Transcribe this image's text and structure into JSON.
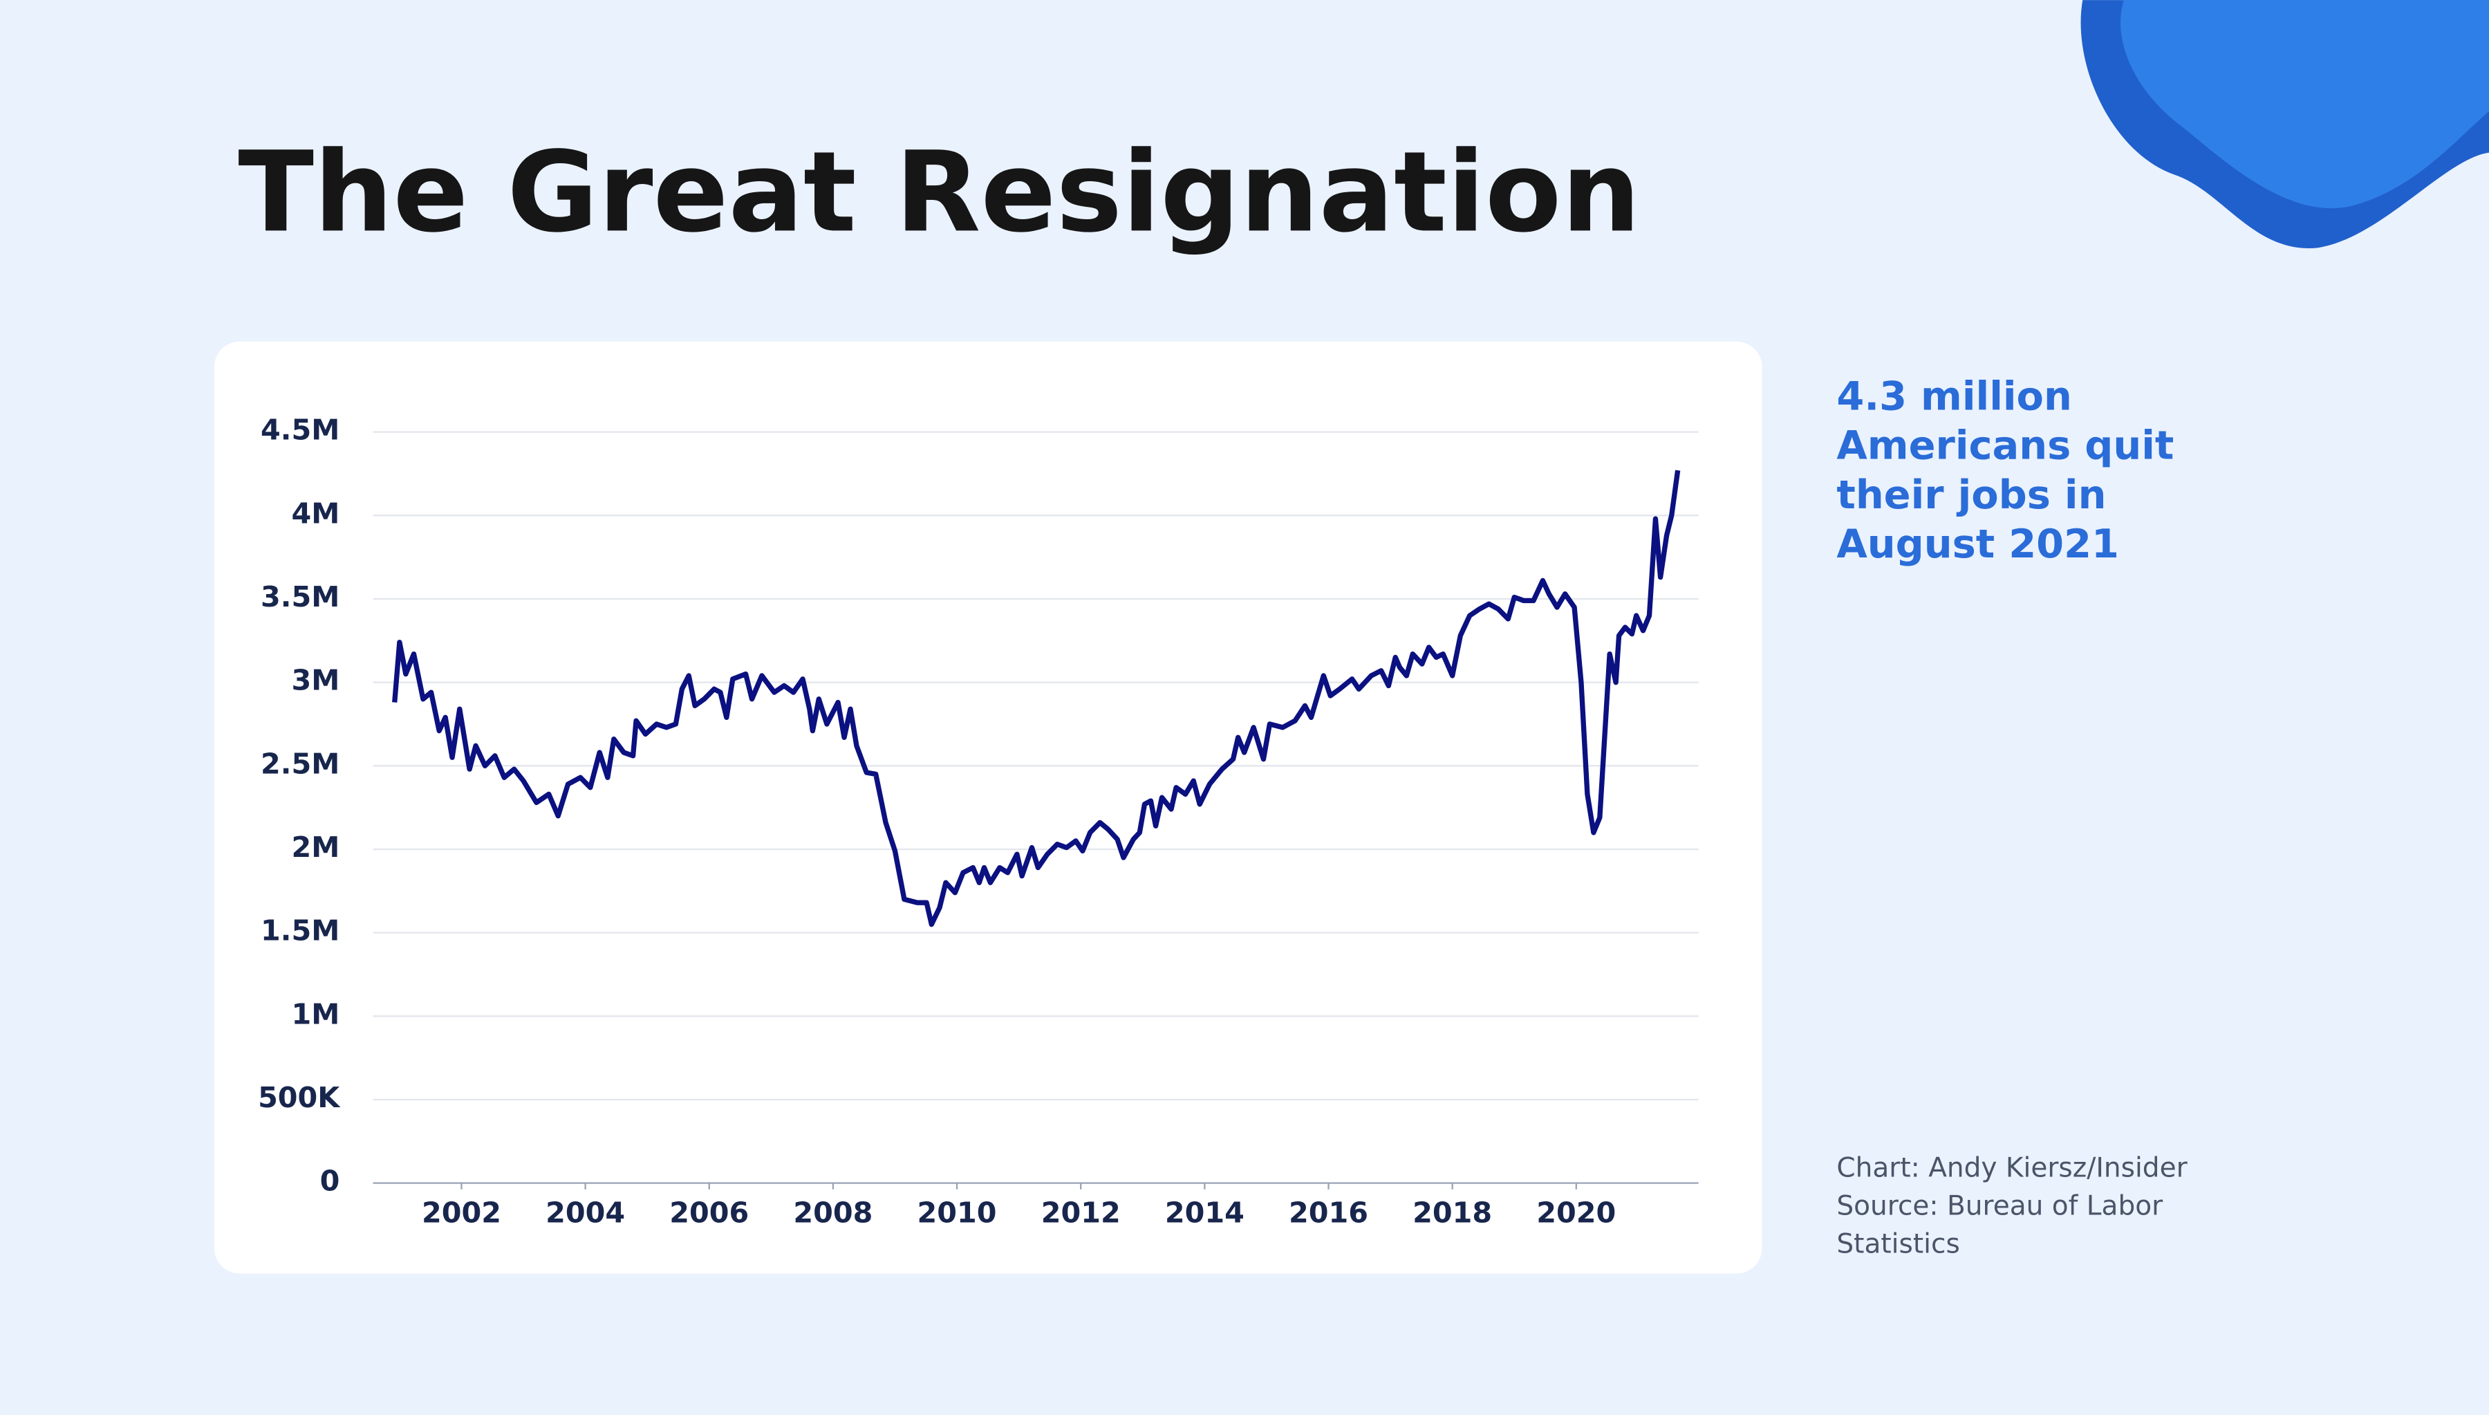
{
  "chart_data": {
    "type": "line",
    "title": "The Great Resignation",
    "annotation": "4.3 million Americans quit their jobs in August 2021",
    "credit": "Chart: Andy Kiersz/Insider",
    "source": "Source: Bureau of Labor Statistics",
    "color": "#0b1180",
    "grid": true,
    "xlim": [
      2000.7,
      2022
    ],
    "xticks": [
      2002,
      2004,
      2006,
      2008,
      2010,
      2012,
      2014,
      2016,
      2018,
      2020
    ],
    "ylim": [
      0,
      4500000
    ],
    "yticks": [
      0,
      {
        "value": 500000,
        "label": "500K"
      },
      {
        "value": 1000000,
        "label": "1M"
      },
      {
        "value": 1500000,
        "label": "1.5M"
      },
      {
        "value": 2000000,
        "label": "2M"
      },
      {
        "value": 2500000,
        "label": "2.5M"
      },
      {
        "value": 3000000,
        "label": "3M"
      },
      {
        "value": 3500000,
        "label": "3.5M"
      },
      {
        "value": 4000000,
        "label": "4M"
      },
      {
        "value": 4500000,
        "label": "4.5M"
      }
    ],
    "x": [
      2000.92,
      2001.0,
      2001.1,
      2001.23,
      2001.38,
      2001.51,
      2001.64,
      2001.74,
      2001.85,
      2001.97,
      2002.13,
      2002.23,
      2002.38,
      2002.54,
      2002.69,
      2002.85,
      2003.0,
      2003.21,
      2003.41,
      2003.56,
      2003.72,
      2003.92,
      2004.08,
      2004.23,
      2004.36,
      2004.46,
      2004.62,
      2004.77,
      2004.82,
      2004.97,
      2005.15,
      2005.31,
      2005.46,
      2005.56,
      2005.67,
      2005.77,
      2005.92,
      2006.08,
      2006.18,
      2006.28,
      2006.38,
      2006.59,
      2006.69,
      2006.85,
      2007.05,
      2007.21,
      2007.36,
      2007.51,
      2007.62,
      2007.67,
      2007.77,
      2007.9,
      2008.08,
      2008.18,
      2008.28,
      2008.38,
      2008.54,
      2008.69,
      2008.85,
      2009.0,
      2009.15,
      2009.36,
      2009.51,
      2009.59,
      2009.72,
      2009.82,
      2009.97,
      2010.1,
      2010.26,
      2010.36,
      2010.44,
      2010.54,
      2010.69,
      2010.82,
      2010.97,
      2011.05,
      2011.21,
      2011.31,
      2011.46,
      2011.62,
      2011.77,
      2011.92,
      2012.03,
      2012.15,
      2012.31,
      2012.44,
      2012.59,
      2012.69,
      2012.85,
      2012.95,
      2013.03,
      2013.13,
      2013.21,
      2013.31,
      2013.46,
      2013.54,
      2013.69,
      2013.82,
      2013.92,
      2014.08,
      2014.28,
      2014.46,
      2014.54,
      2014.64,
      2014.79,
      2014.95,
      2015.05,
      2015.26,
      2015.46,
      2015.62,
      2015.72,
      2015.92,
      2016.03,
      2016.18,
      2016.38,
      2016.49,
      2016.69,
      2016.85,
      2016.97,
      2017.08,
      2017.15,
      2017.26,
      2017.36,
      2017.51,
      2017.62,
      2017.74,
      2017.85,
      2018.0,
      2018.13,
      2018.28,
      2018.44,
      2018.59,
      2018.74,
      2018.9,
      2019.0,
      2019.15,
      2019.31,
      2019.46,
      2019.56,
      2019.69,
      2019.82,
      2019.97,
      2020.08,
      2020.18,
      2020.28,
      2020.38,
      2020.54,
      2020.64,
      2020.69,
      2020.79,
      2020.9,
      2020.97,
      2021.08,
      2021.18,
      2021.28,
      2021.36,
      2021.46,
      2021.54,
      2021.64
    ],
    "values": [
      2880000,
      3240000,
      3050000,
      3170000,
      2900000,
      2940000,
      2710000,
      2790000,
      2550000,
      2840000,
      2480000,
      2620000,
      2500000,
      2560000,
      2430000,
      2480000,
      2410000,
      2280000,
      2330000,
      2200000,
      2390000,
      2430000,
      2370000,
      2580000,
      2430000,
      2660000,
      2580000,
      2560000,
      2770000,
      2690000,
      2750000,
      2730000,
      2750000,
      2960000,
      3040000,
      2860000,
      2900000,
      2960000,
      2940000,
      2790000,
      3020000,
      3050000,
      2900000,
      3040000,
      2940000,
      2980000,
      2940000,
      3020000,
      2840000,
      2710000,
      2900000,
      2750000,
      2880000,
      2670000,
      2840000,
      2620000,
      2460000,
      2450000,
      2160000,
      1990000,
      1700000,
      1680000,
      1680000,
      1550000,
      1650000,
      1800000,
      1740000,
      1860000,
      1890000,
      1800000,
      1890000,
      1800000,
      1890000,
      1860000,
      1970000,
      1840000,
      2010000,
      1890000,
      1970000,
      2030000,
      2010000,
      2050000,
      1990000,
      2100000,
      2160000,
      2120000,
      2060000,
      1950000,
      2060000,
      2100000,
      2270000,
      2290000,
      2140000,
      2310000,
      2240000,
      2370000,
      2330000,
      2410000,
      2270000,
      2390000,
      2480000,
      2540000,
      2670000,
      2580000,
      2730000,
      2540000,
      2750000,
      2730000,
      2770000,
      2860000,
      2790000,
      3040000,
      2920000,
      2960000,
      3020000,
      2960000,
      3040000,
      3070000,
      2980000,
      3150000,
      3090000,
      3040000,
      3170000,
      3110000,
      3210000,
      3150000,
      3170000,
      3040000,
      3280000,
      3400000,
      3440000,
      3470000,
      3440000,
      3380000,
      3510000,
      3490000,
      3490000,
      3610000,
      3530000,
      3450000,
      3530000,
      3450000,
      3000000,
      2330000,
      2100000,
      2190000,
      3170000,
      3000000,
      3280000,
      3330000,
      3290000,
      3400000,
      3310000,
      3400000,
      3980000,
      3630000,
      3880000,
      4000000,
      4270000
    ]
  }
}
